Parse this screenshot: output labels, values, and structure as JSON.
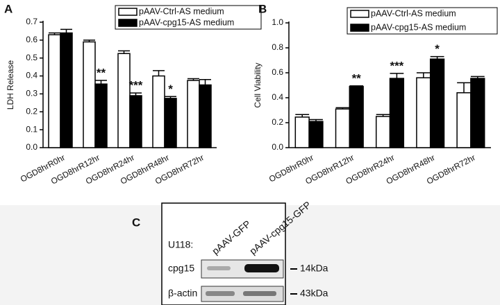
{
  "chart_data": [
    {
      "type": "bar",
      "panel": "A",
      "ylabel": "LDH Release",
      "categories": [
        "OGD8hrR0hr",
        "OGD8hrR12hr",
        "OGD8hrR24hr",
        "OGD8hrR48hr",
        "OGD8hrR72hr"
      ],
      "series": [
        {
          "name": "pAAV-Ctrl-AS medium",
          "color": "#ffffff",
          "values": [
            0.63,
            0.59,
            0.525,
            0.4,
            0.375
          ],
          "errors": [
            0.01,
            0.01,
            0.015,
            0.03,
            0.01
          ]
        },
        {
          "name": "pAAV-cpg15-AS medium",
          "color": "#000000",
          "values": [
            0.64,
            0.355,
            0.29,
            0.275,
            0.35
          ],
          "errors": [
            0.02,
            0.02,
            0.015,
            0.01,
            0.03
          ]
        }
      ],
      "annotations": [
        null,
        "**",
        "***",
        "*",
        null
      ],
      "ylim": [
        0,
        0.7
      ],
      "yticks": [
        {
          "value": 0,
          "label": "0.0"
        },
        0.1,
        0.2,
        0.3,
        0.4,
        0.5,
        0.6,
        0.7
      ]
    },
    {
      "type": "bar",
      "panel": "B",
      "ylabel": "Cell Viability",
      "categories": [
        "OGD8hrR0hr",
        "OGD8hrR12hr",
        "OGD8hrR24hr",
        "OGD8hrR48hr",
        "OGD8hrR72hr"
      ],
      "series": [
        {
          "name": "pAAV-Ctrl-AS medium",
          "color": "#ffffff",
          "values": [
            0.245,
            0.31,
            0.25,
            0.56,
            0.44
          ],
          "errors": [
            0.02,
            0.01,
            0.015,
            0.04,
            0.08
          ]
        },
        {
          "name": "pAAV-cpg15-AS medium",
          "color": "#000000",
          "values": [
            0.21,
            0.49,
            0.555,
            0.71,
            0.555
          ],
          "errors": [
            0.015,
            0.005,
            0.04,
            0.02,
            0.015
          ]
        }
      ],
      "annotations": [
        null,
        "**",
        "***",
        "*",
        null
      ],
      "ylim": [
        0,
        1.0
      ],
      "yticks": [
        {
          "value": 0,
          "label": "0.0"
        },
        0.2,
        0.4,
        0.6,
        0.8,
        {
          "value": 1.0,
          "label": "1.0"
        }
      ]
    }
  ],
  "blot": {
    "panel": "C",
    "cell_line": "U118:",
    "lanes": [
      "pAAV-GFP",
      "pAAV-cpg15-GFP"
    ],
    "rows": [
      {
        "label": "cpg15",
        "size": "14kDa"
      },
      {
        "label": "β-actin",
        "size": "43kDa"
      }
    ]
  }
}
